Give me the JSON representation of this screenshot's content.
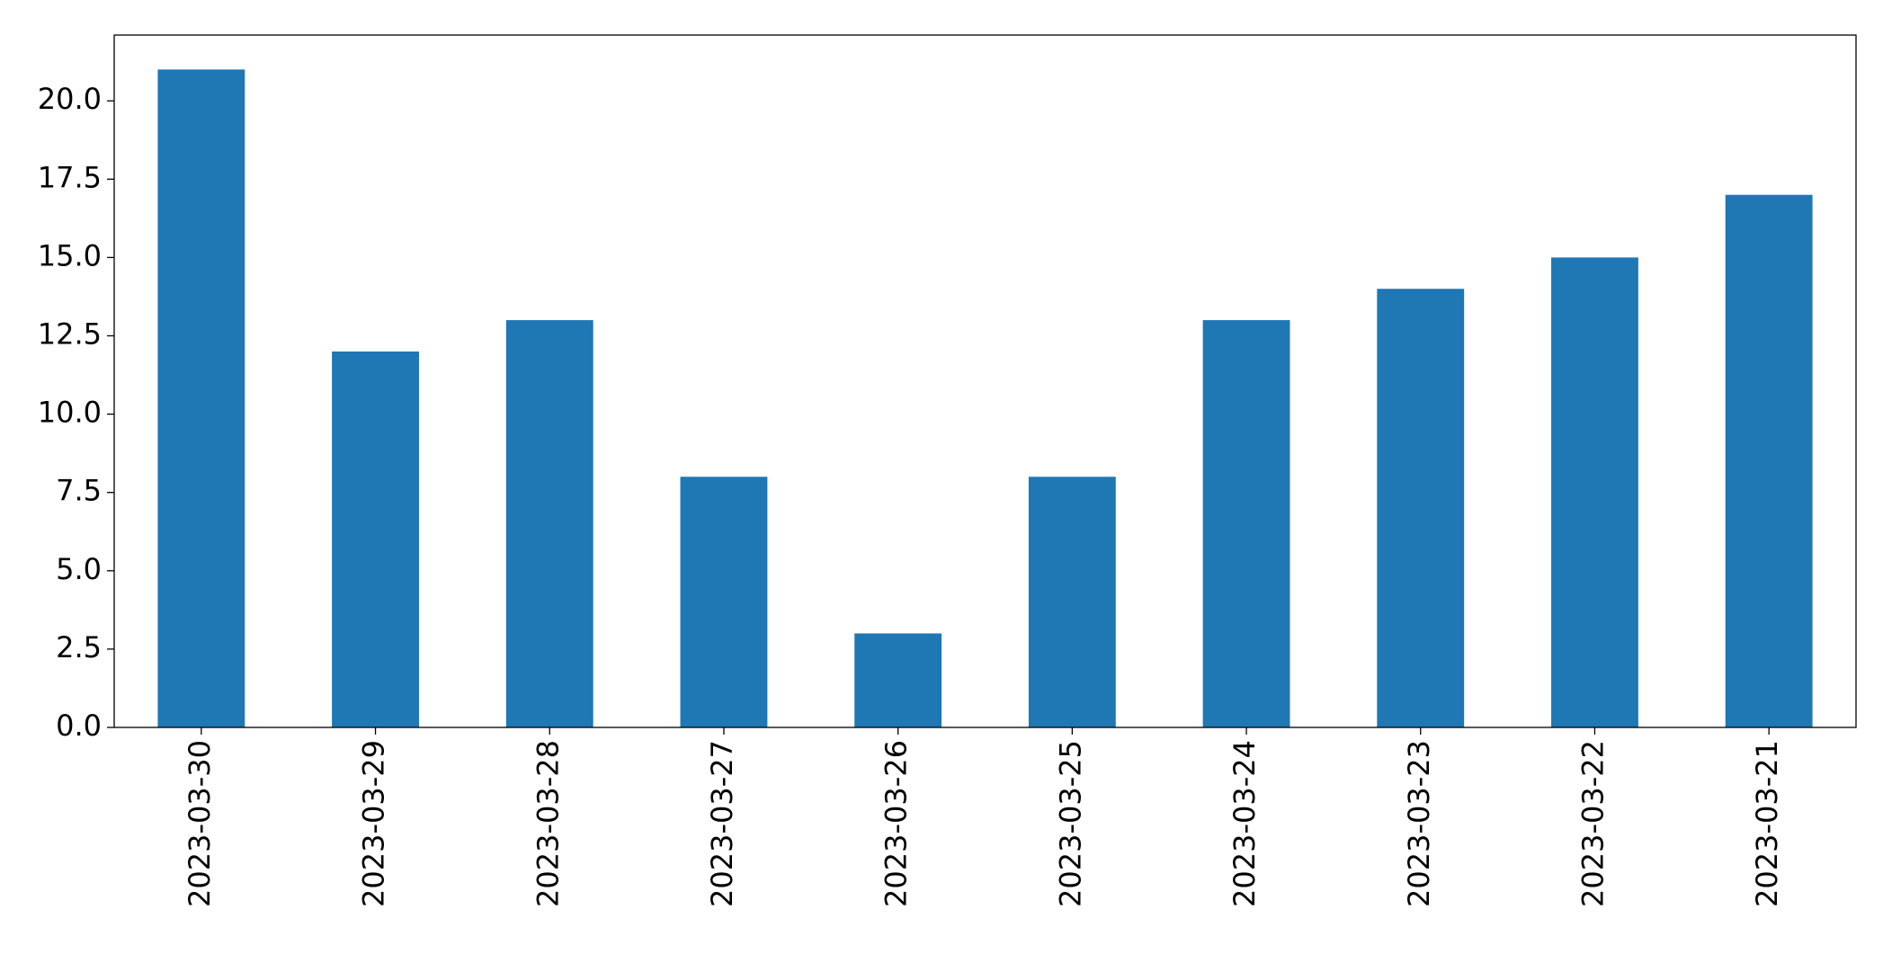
{
  "chart_data": {
    "type": "bar",
    "categories": [
      "2023-03-30",
      "2023-03-29",
      "2023-03-28",
      "2023-03-27",
      "2023-03-26",
      "2023-03-25",
      "2023-03-24",
      "2023-03-23",
      "2023-03-22",
      "2023-03-21"
    ],
    "values": [
      21,
      12,
      13,
      8,
      3,
      8,
      13,
      14,
      15,
      17
    ],
    "color": "#1f77b4",
    "ylim": [
      0,
      22.1
    ],
    "yticks": [
      {
        "value": 0,
        "label": "0.0"
      },
      {
        "value": 2.5,
        "label": "2.5"
      },
      {
        "value": 5,
        "label": "5.0"
      },
      {
        "value": 7.5,
        "label": "7.5"
      },
      {
        "value": 10,
        "label": "10.0"
      },
      {
        "value": 12.5,
        "label": "12.5"
      },
      {
        "value": 15,
        "label": "15.0"
      },
      {
        "value": 17.5,
        "label": "17.5"
      },
      {
        "value": 20,
        "label": "20.0"
      }
    ],
    "grid": false
  }
}
